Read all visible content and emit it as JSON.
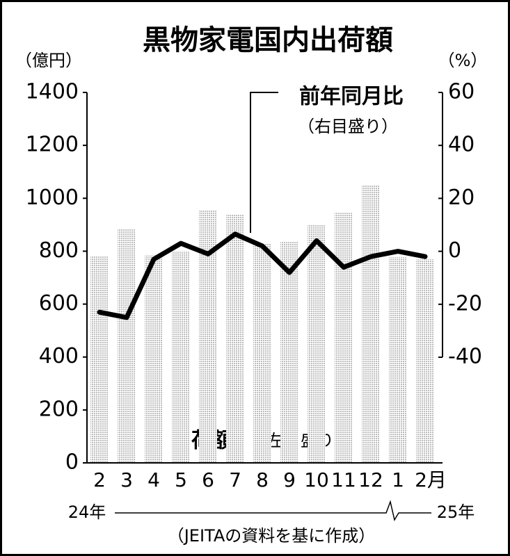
{
  "chart_data": {
    "type": "bar_line",
    "title": "黒物家電国内出荷額",
    "y_label": "（億円）",
    "y2_label": "（%）",
    "categories": [
      "2",
      "3",
      "4",
      "5",
      "6",
      "7",
      "8",
      "9",
      "10",
      "11",
      "12",
      "1",
      "2月"
    ],
    "series": [
      {
        "name": "出荷額",
        "type": "bar",
        "color": "#bdbdbd",
        "values": [
          780,
          885,
          785,
          800,
          955,
          940,
          830,
          835,
          900,
          945,
          1050,
          778,
          770
        ]
      },
      {
        "name": "前年同月比",
        "type": "line",
        "axis": "y2",
        "color": "#000000",
        "values": [
          -23,
          -25,
          -3,
          3,
          -1,
          6.5,
          2,
          -8,
          4,
          -6,
          -2,
          0,
          -2
        ]
      }
    ],
    "annotations": [
      "（右目盛り）",
      "（左目盛り）"
    ],
    "year_labels": [
      "24年",
      "25年"
    ],
    "source": "（JEITAの資料を基に作成）",
    "ylim": [
      0,
      1400
    ],
    "yticks": [
      0,
      200,
      400,
      600,
      800,
      1000,
      1200,
      1400
    ],
    "y2lim": [
      -40,
      60
    ],
    "y2ticks": [
      -40,
      -20,
      0,
      20,
      40,
      60
    ]
  }
}
